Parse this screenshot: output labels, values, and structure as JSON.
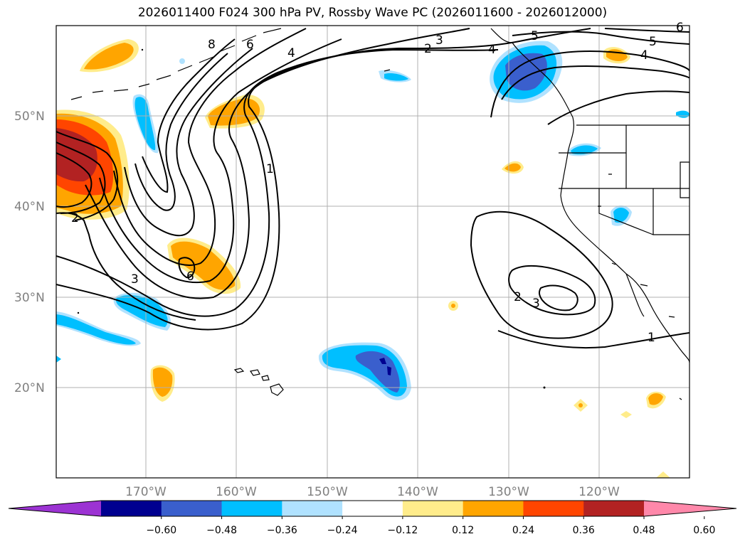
{
  "title": "2026011400 F024 300 hPa PV, Rossby Wave PC (2026011600 - 2026012000)",
  "lat_labels": [
    "50°N",
    "40°N",
    "30°N",
    "20°N"
  ],
  "lon_labels": [
    "170°W",
    "160°W",
    "150°W",
    "140°W",
    "130°W",
    "120°W"
  ],
  "contour_labels": [
    "8",
    "6",
    "4",
    "2",
    "3",
    "4",
    "5",
    "5",
    "4",
    "1",
    "2",
    "3",
    "6",
    "2",
    "3",
    "1",
    "6"
  ],
  "colorbar": {
    "colors": [
      "#9c33d3",
      "#000090",
      "#3a5fcd",
      "#00bfff",
      "#b0e2ff",
      "#ffffff",
      "#ffec8b",
      "#ffa500",
      "#ff4500",
      "#b22222",
      "#ff88aa"
    ],
    "tick_labels": [
      "−0.60",
      "−0.48",
      "−0.36",
      "−0.24",
      "−0.12",
      "0.12",
      "0.24",
      "0.36",
      "0.48",
      "0.60"
    ]
  },
  "colors": {
    "gridline": "#b0b0b0",
    "positive_light": "#ffec8b",
    "positive_mid": "#ffa500",
    "positive_strong": "#ff4500",
    "positive_max": "#b22222",
    "negative_light": "#b0e2ff",
    "negative_mid": "#00bfff",
    "negative_strong": "#3a5fcd",
    "negative_max": "#000090"
  }
}
